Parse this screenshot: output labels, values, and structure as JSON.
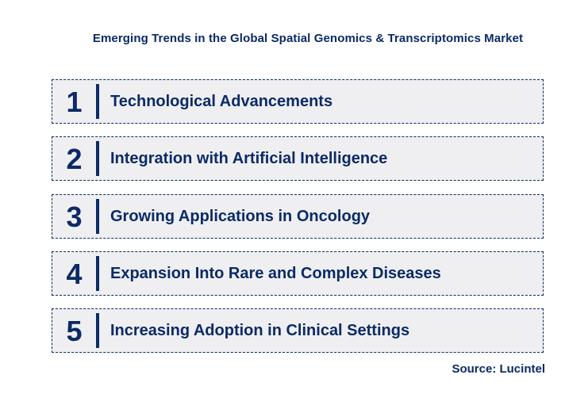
{
  "title": "Emerging Trends in the Global Spatial Genomics & Transcriptomics Market",
  "trends": [
    {
      "number": "1",
      "label": "Technological Advancements"
    },
    {
      "number": "2",
      "label": "Integration with Artificial Intelligence"
    },
    {
      "number": "3",
      "label": "Growing Applications in Oncology"
    },
    {
      "number": "4",
      "label": "Expansion Into Rare and Complex Diseases"
    },
    {
      "number": "5",
      "label": "Increasing Adoption in Clinical Settings"
    }
  ],
  "source": "Source: Lucintel",
  "colors": {
    "navy": "#0b2a66",
    "box_fill": "#efeff1",
    "background": "#ffffff"
  }
}
